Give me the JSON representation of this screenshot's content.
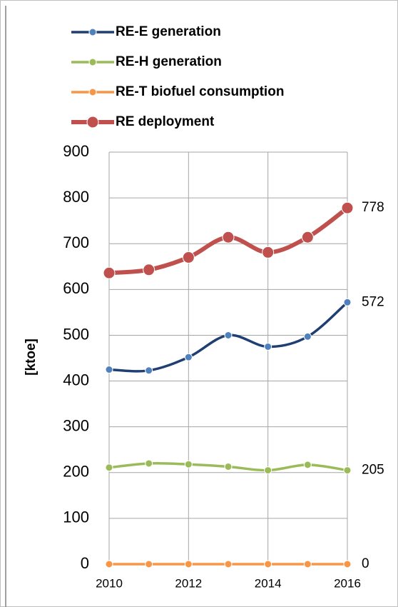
{
  "chart_data": {
    "type": "line",
    "y_label": "[ktoe]",
    "x": [
      2010,
      2011,
      2012,
      2013,
      2014,
      2015,
      2016
    ],
    "xlim": [
      2010,
      2016
    ],
    "xticks": [
      2010,
      2012,
      2014,
      2016
    ],
    "ylim": [
      0,
      900
    ],
    "yticks": [
      0,
      100,
      200,
      300,
      400,
      500,
      600,
      700,
      800,
      900
    ],
    "grid": true,
    "legend": "top",
    "series": [
      {
        "name": "RE-E generation",
        "color": "#1f3f73",
        "marker_color": "#4f81bd",
        "values": [
          425,
          423,
          452,
          500,
          475,
          497,
          572
        ]
      },
      {
        "name": "RE-H generation",
        "color": "#9bbb59",
        "marker_color": "#9bbb59",
        "values": [
          211,
          220,
          218,
          213,
          205,
          217,
          205
        ]
      },
      {
        "name": "RE-T biofuel consumption",
        "color": "#f79646",
        "marker_color": "#f79646",
        "values": [
          0,
          0,
          0,
          0,
          0,
          0,
          0
        ]
      },
      {
        "name": "RE deployment",
        "color": "#c0504d",
        "marker_color": "#c0504d",
        "values": [
          636,
          643,
          670,
          714,
          681,
          714,
          778
        ]
      }
    ]
  }
}
